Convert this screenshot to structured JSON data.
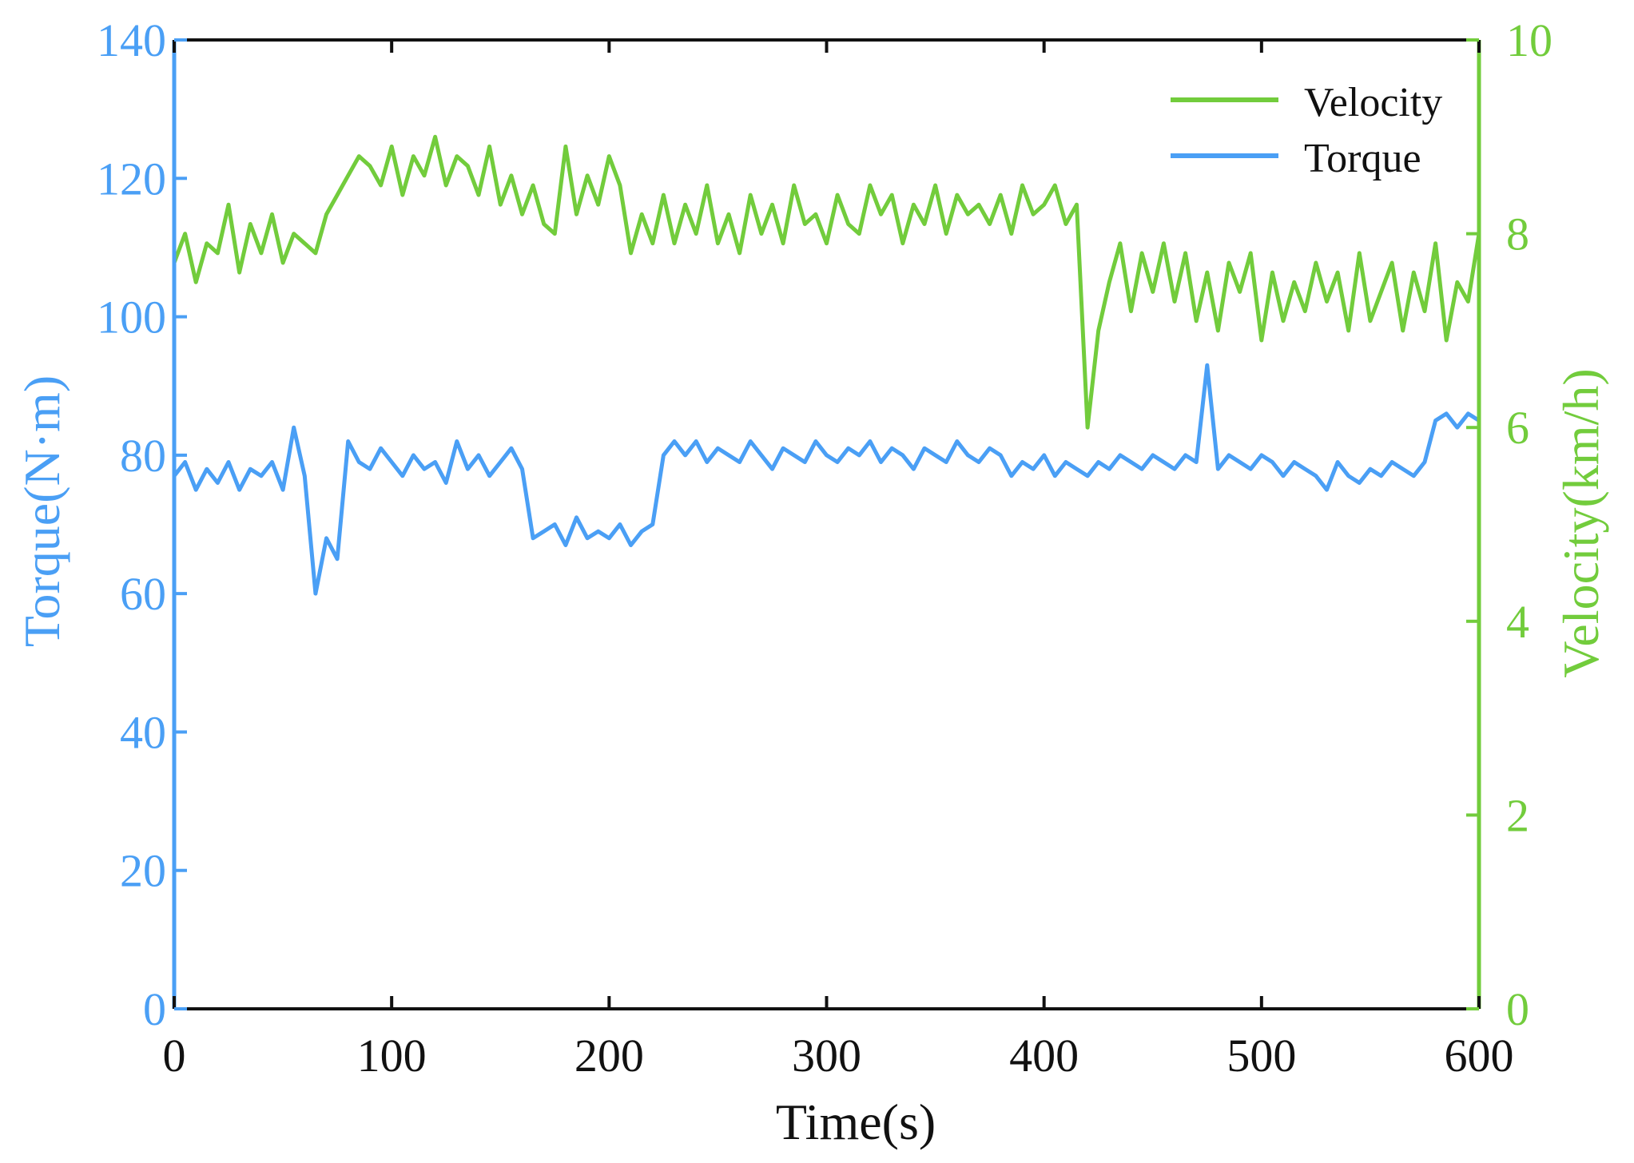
{
  "chart_data": {
    "type": "line",
    "title": "",
    "xlabel": "Time(s)",
    "ylabel_left": "Torque(N·m)",
    "ylabel_right": "Velocity(km/h)",
    "xlim": [
      0,
      600
    ],
    "ylim_left": [
      0,
      140
    ],
    "ylim_right": [
      0,
      10
    ],
    "x_ticks": [
      0,
      100,
      200,
      300,
      400,
      500,
      600
    ],
    "y_ticks_left": [
      0,
      20,
      40,
      60,
      80,
      100,
      120,
      140
    ],
    "y_ticks_right": [
      0,
      2,
      4,
      6,
      8,
      10
    ],
    "legend_position": "top-right",
    "grid": false,
    "colors": {
      "torque": "#4a9ff5",
      "velocity": "#72cc3c",
      "frame": "#111111"
    },
    "series": [
      {
        "name": "Velocity",
        "axis": "right",
        "color": "#72cc3c",
        "x": [
          0,
          5,
          10,
          15,
          20,
          25,
          30,
          35,
          40,
          45,
          50,
          55,
          60,
          65,
          70,
          75,
          80,
          85,
          90,
          95,
          100,
          105,
          110,
          115,
          120,
          125,
          130,
          135,
          140,
          145,
          150,
          155,
          160,
          165,
          170,
          175,
          180,
          185,
          190,
          195,
          200,
          205,
          210,
          215,
          220,
          225,
          230,
          235,
          240,
          245,
          250,
          255,
          260,
          265,
          270,
          275,
          280,
          285,
          290,
          295,
          300,
          305,
          310,
          315,
          320,
          325,
          330,
          335,
          340,
          345,
          350,
          355,
          360,
          365,
          370,
          375,
          380,
          385,
          390,
          395,
          400,
          405,
          410,
          415,
          420,
          425,
          430,
          435,
          440,
          445,
          450,
          455,
          460,
          465,
          470,
          475,
          480,
          485,
          490,
          495,
          500,
          505,
          510,
          515,
          520,
          525,
          530,
          535,
          540,
          545,
          550,
          555,
          560,
          565,
          570,
          575,
          580,
          585,
          590,
          595,
          600
        ],
        "values": [
          7.7,
          8.0,
          7.5,
          7.9,
          7.8,
          8.3,
          7.6,
          8.1,
          7.8,
          8.2,
          7.7,
          8.0,
          7.9,
          7.8,
          8.2,
          8.4,
          8.6,
          8.8,
          8.7,
          8.5,
          8.9,
          8.4,
          8.8,
          8.6,
          9.0,
          8.5,
          8.8,
          8.7,
          8.4,
          8.9,
          8.3,
          8.6,
          8.2,
          8.5,
          8.1,
          8.0,
          8.9,
          8.2,
          8.6,
          8.3,
          8.8,
          8.5,
          7.8,
          8.2,
          7.9,
          8.4,
          7.9,
          8.3,
          8.0,
          8.5,
          7.9,
          8.2,
          7.8,
          8.4,
          8.0,
          8.3,
          7.9,
          8.5,
          8.1,
          8.2,
          7.9,
          8.4,
          8.1,
          8.0,
          8.5,
          8.2,
          8.4,
          7.9,
          8.3,
          8.1,
          8.5,
          8.0,
          8.4,
          8.2,
          8.3,
          8.1,
          8.4,
          8.0,
          8.5,
          8.2,
          8.3,
          8.5,
          8.1,
          8.3,
          6.0,
          7.0,
          7.5,
          7.9,
          7.2,
          7.8,
          7.4,
          7.9,
          7.3,
          7.8,
          7.1,
          7.6,
          7.0,
          7.7,
          7.4,
          7.8,
          6.9,
          7.6,
          7.1,
          7.5,
          7.2,
          7.7,
          7.3,
          7.6,
          7.0,
          7.8,
          7.1,
          7.4,
          7.7,
          7.0,
          7.6,
          7.2,
          7.9,
          6.9,
          7.5,
          7.3,
          8.0
        ]
      },
      {
        "name": "Torque",
        "axis": "left",
        "color": "#4a9ff5",
        "x": [
          0,
          5,
          10,
          15,
          20,
          25,
          30,
          35,
          40,
          45,
          50,
          55,
          60,
          65,
          70,
          75,
          80,
          85,
          90,
          95,
          100,
          105,
          110,
          115,
          120,
          125,
          130,
          135,
          140,
          145,
          150,
          155,
          160,
          165,
          170,
          175,
          180,
          185,
          190,
          195,
          200,
          205,
          210,
          215,
          220,
          225,
          230,
          235,
          240,
          245,
          250,
          255,
          260,
          265,
          270,
          275,
          280,
          285,
          290,
          295,
          300,
          305,
          310,
          315,
          320,
          325,
          330,
          335,
          340,
          345,
          350,
          355,
          360,
          365,
          370,
          375,
          380,
          385,
          390,
          395,
          400,
          405,
          410,
          415,
          420,
          425,
          430,
          435,
          440,
          445,
          450,
          455,
          460,
          465,
          470,
          475,
          480,
          485,
          490,
          495,
          500,
          505,
          510,
          515,
          520,
          525,
          530,
          535,
          540,
          545,
          550,
          555,
          560,
          565,
          570,
          575,
          580,
          585,
          590,
          595,
          600
        ],
        "values": [
          77,
          79,
          75,
          78,
          76,
          79,
          75,
          78,
          77,
          79,
          75,
          84,
          77,
          60,
          68,
          65,
          82,
          79,
          78,
          81,
          79,
          77,
          80,
          78,
          79,
          76,
          82,
          78,
          80,
          77,
          79,
          81,
          78,
          68,
          69,
          70,
          67,
          71,
          68,
          69,
          68,
          70,
          67,
          69,
          70,
          80,
          82,
          80,
          82,
          79,
          81,
          80,
          79,
          82,
          80,
          78,
          81,
          80,
          79,
          82,
          80,
          79,
          81,
          80,
          82,
          79,
          81,
          80,
          78,
          81,
          80,
          79,
          82,
          80,
          79,
          81,
          80,
          77,
          79,
          78,
          80,
          77,
          79,
          78,
          77,
          79,
          78,
          80,
          79,
          78,
          80,
          79,
          78,
          80,
          79,
          93,
          78,
          80,
          79,
          78,
          80,
          79,
          77,
          79,
          78,
          77,
          75,
          79,
          77,
          76,
          78,
          77,
          79,
          78,
          77,
          79,
          85,
          86,
          84,
          86,
          85
        ]
      }
    ]
  }
}
